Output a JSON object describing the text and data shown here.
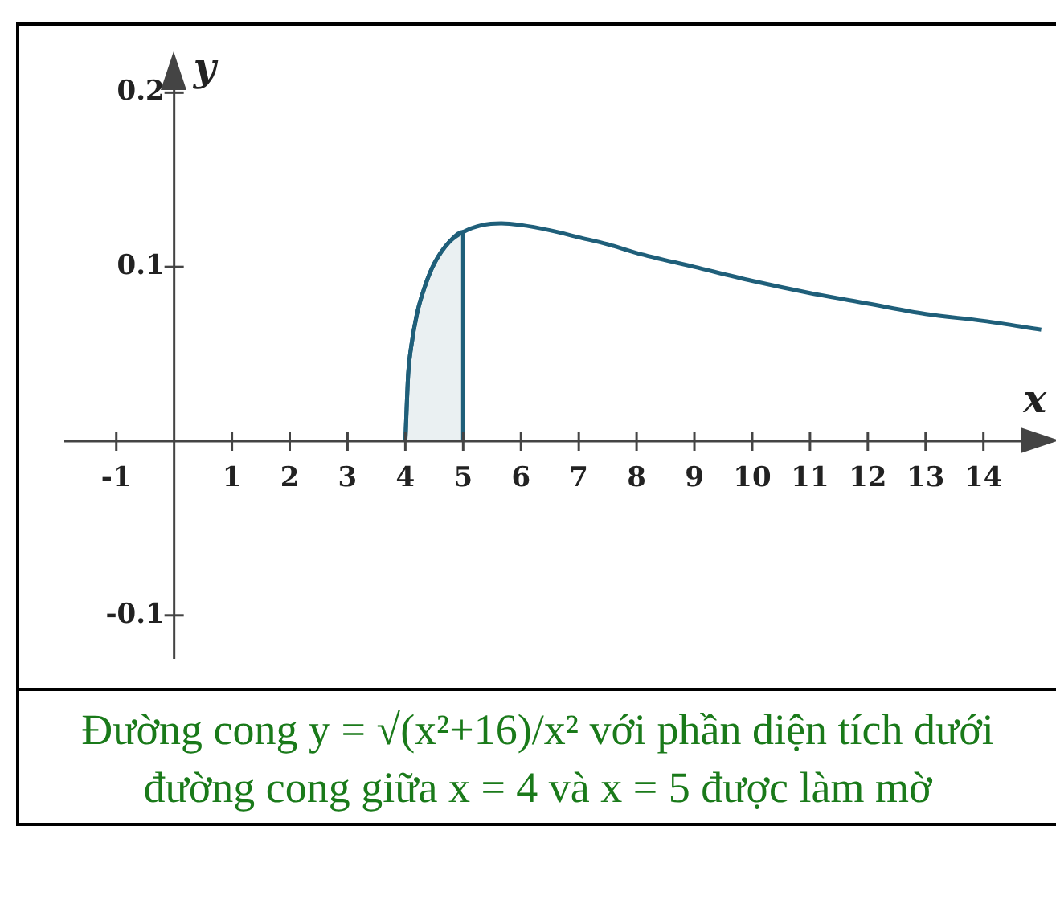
{
  "chart_data": {
    "type": "line",
    "xlabel": "x",
    "ylabel": "y",
    "annotations": [
      "Đường cong y = √(x²+16)/x² với phần diện tích dưới đường cong giữa x = 4 và x = 5 được làm mờ"
    ],
    "xlim": [
      -1.9,
      15.2
    ],
    "ylim": [
      -0.125,
      0.22
    ],
    "xticks": [
      -1,
      1,
      2,
      3,
      4,
      5,
      6,
      7,
      8,
      9,
      10,
      11,
      12,
      13,
      14
    ],
    "yticks": [
      -0.1,
      0.1,
      0.2
    ],
    "grid": false,
    "legend": false,
    "marker": "none",
    "line_style": "solid",
    "series": [
      {
        "type": "area",
        "color": "#1f5f7a",
        "x": [
          4,
          4.05,
          4.1,
          4.2,
          4.35,
          4.5,
          4.75,
          5,
          5
        ],
        "values": [
          0,
          0.039,
          0.054,
          0.073,
          0.09,
          0.102,
          0.114,
          0.12,
          0
        ]
      },
      {
        "color": "#1f5f7a",
        "x": [
          4,
          4.05,
          4.1,
          4.2,
          4.35,
          4.5,
          4.75,
          5,
          5.33,
          5.66,
          6,
          6.5,
          7,
          7.5,
          8,
          9,
          10,
          11,
          12,
          13,
          14,
          15
        ],
        "values": [
          0,
          0.039,
          0.054,
          0.073,
          0.09,
          0.102,
          0.114,
          0.12,
          0.124,
          0.125,
          0.124,
          0.121,
          0.117,
          0.113,
          0.108,
          0.1,
          0.092,
          0.085,
          0.079,
          0.073,
          0.069,
          0.064
        ]
      }
    ]
  }
}
